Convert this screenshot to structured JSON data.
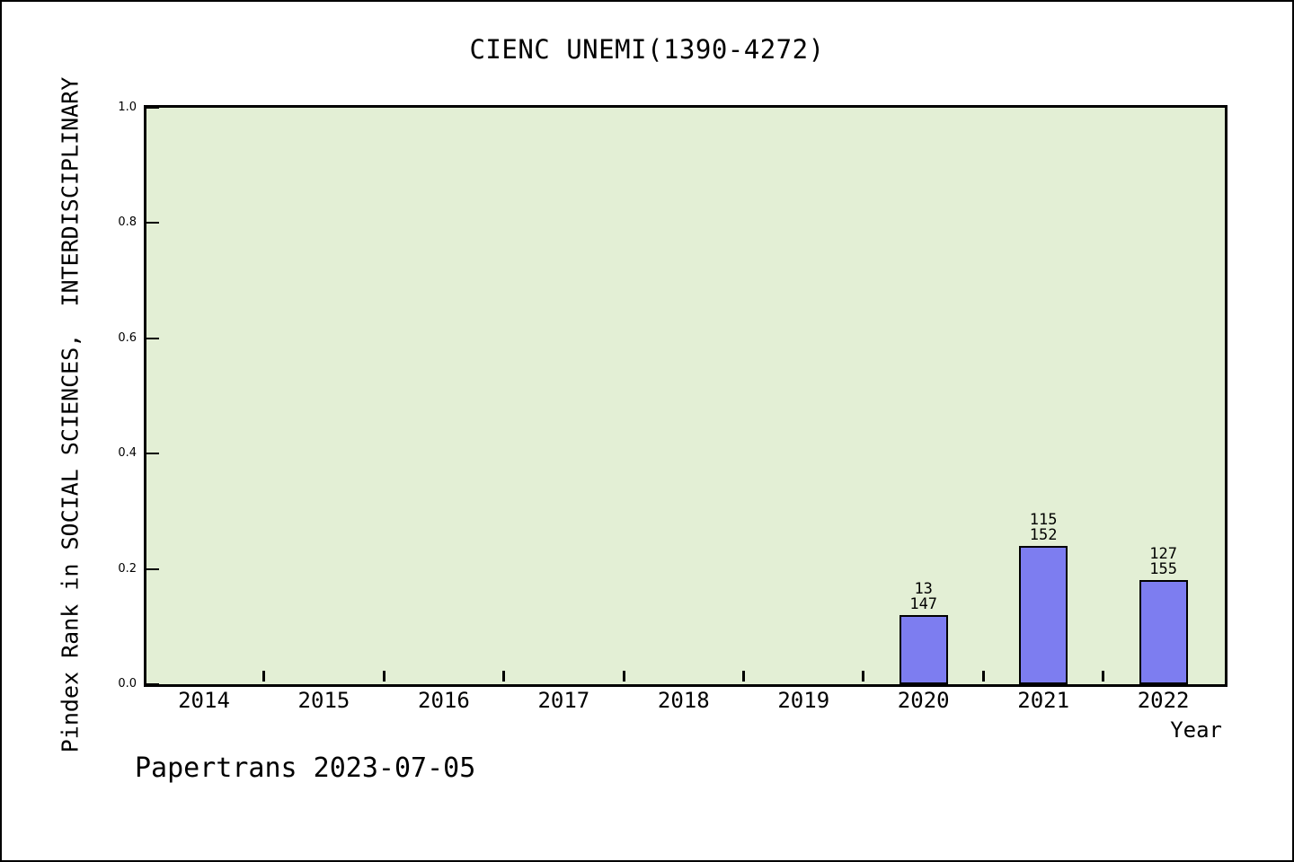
{
  "chart_data": {
    "type": "bar",
    "title": "CIENC UNEMI(1390-4272)",
    "xlabel": "Year",
    "ylabel": "Pindex Rank in SOCIAL SCIENCES,  INTERDISCIPLINARY",
    "footer": "Papertrans 2023-07-05",
    "categories": [
      "2014",
      "2015",
      "2016",
      "2017",
      "2018",
      "2019",
      "2020",
      "2021",
      "2022"
    ],
    "values": [
      0,
      0,
      0,
      0,
      0,
      0,
      0.12,
      0.24,
      0.18
    ],
    "bar_labels": [
      null,
      null,
      null,
      null,
      null,
      null,
      [
        "13",
        "147"
      ],
      [
        "115",
        "152"
      ],
      [
        "127",
        "155"
      ]
    ],
    "ylim": [
      0.0,
      1.0
    ],
    "yticks": [
      "1.0",
      "0.8",
      "0.6",
      "0.4",
      "0.2",
      "0.0"
    ],
    "grid": "off",
    "legend": "none",
    "tick_style": "ticks at category bin edges, pointing inward",
    "colors": {
      "bar_fill": "#7d7df0",
      "bar_edge": "#000000",
      "plot_bg": "#e3efd5",
      "page_bg": "#ffffff",
      "spine": "#000000",
      "text": "#000000"
    }
  }
}
